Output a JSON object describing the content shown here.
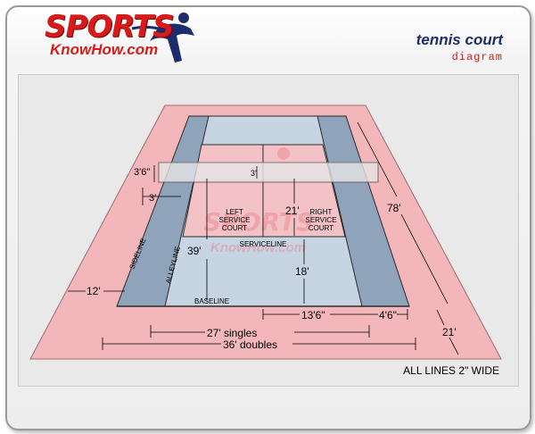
{
  "header": {
    "logo_word_1": "SPORTS",
    "logo_word_2": "KnowHow.com",
    "title": "tennis court",
    "subtitle": "diagram"
  },
  "diagram": {
    "labels": {
      "net_height": "3'6\"",
      "center_net_height": "3'",
      "net_post_offset": "3'",
      "left_service_court": "LEFT SERVICE COURT",
      "right_service_court": "RIGHT SERVICE COURT",
      "service_box_length": "21'",
      "service_box_length_2": "21'",
      "length": "78'",
      "half_length": "39'",
      "baseline_to_service": "18'",
      "serviceline": "SERVICELINE",
      "sideline": "SIDELINE",
      "alleyline": "ALLEYLINE",
      "baseline": "BASELINE",
      "back_runoff": "12'",
      "center_width": "13'6\"",
      "alley_width": "4'6\"",
      "singles_width": "27' singles",
      "doubles_width": "36' doubles"
    }
  },
  "footer": {
    "note": "ALL LINES 2\" WIDE"
  },
  "colors": {
    "surround": "#f3b6bb",
    "court": "#c7d5e3",
    "alley": "#8fa4bb",
    "brand_red": "#d91a1a",
    "brand_blue": "#1d2d6b"
  }
}
